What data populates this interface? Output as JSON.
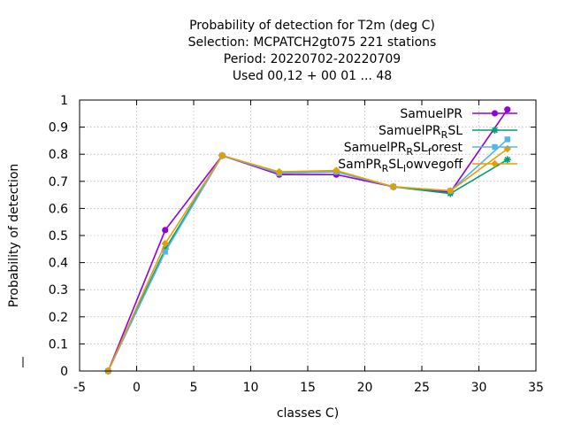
{
  "chart_data": {
    "type": "line",
    "title": [
      "Probability of detection  for T2m (deg C)",
      "Selection: MCPATCH2gt075    221 stations",
      "Period: 20220702-20220709",
      "Used  00,12  + 00 01 ... 48"
    ],
    "xlabel": "classes C)",
    "ylabel": "Probability of detection",
    "xlim": [
      -5,
      35
    ],
    "ylim": [
      0,
      1
    ],
    "xticks": [
      -5,
      0,
      5,
      10,
      15,
      20,
      25,
      30,
      35
    ],
    "yticks": [
      0,
      0.1,
      0.2,
      0.3,
      0.4,
      0.5,
      0.6,
      0.7,
      0.8,
      0.9,
      1
    ],
    "grid": true,
    "legend_position": "top-right",
    "x": [
      -2.5,
      2.5,
      7.5,
      12.5,
      17.5,
      22.5,
      27.5,
      32.5
    ],
    "series": [
      {
        "legend": [
          {
            "t": "SamuelPR"
          }
        ],
        "color": "#9400d3",
        "marker": "filled-circle",
        "values": [
          0.0,
          0.52,
          0.795,
          0.725,
          0.725,
          0.68,
          0.66,
          0.965
        ]
      },
      {
        "legend": [
          {
            "t": "SamuelPR"
          },
          {
            "t": "R",
            "sub": true
          },
          {
            "t": "SL"
          }
        ],
        "color": "#009e73",
        "marker": "star",
        "values": [
          0.0,
          0.45,
          0.795,
          0.73,
          0.735,
          0.68,
          0.655,
          0.78
        ]
      },
      {
        "legend": [
          {
            "t": "SamuelPR"
          },
          {
            "t": "R",
            "sub": true
          },
          {
            "t": "SL"
          },
          {
            "t": "f",
            "sub": true
          },
          {
            "t": "orest"
          }
        ],
        "color": "#56b4e9",
        "marker": "filled-square",
        "values": [
          0.0,
          0.44,
          0.795,
          0.73,
          0.735,
          0.68,
          0.665,
          0.855
        ]
      },
      {
        "legend": [
          {
            "t": "SamPR"
          },
          {
            "t": "R",
            "sub": true
          },
          {
            "t": "SL"
          },
          {
            "t": "l",
            "sub": true
          },
          {
            "t": "owvegoff"
          }
        ],
        "color": "#e69f00",
        "marker": "diamond",
        "values": [
          0.0,
          0.47,
          0.795,
          0.735,
          0.74,
          0.68,
          0.665,
          0.82
        ]
      }
    ]
  }
}
